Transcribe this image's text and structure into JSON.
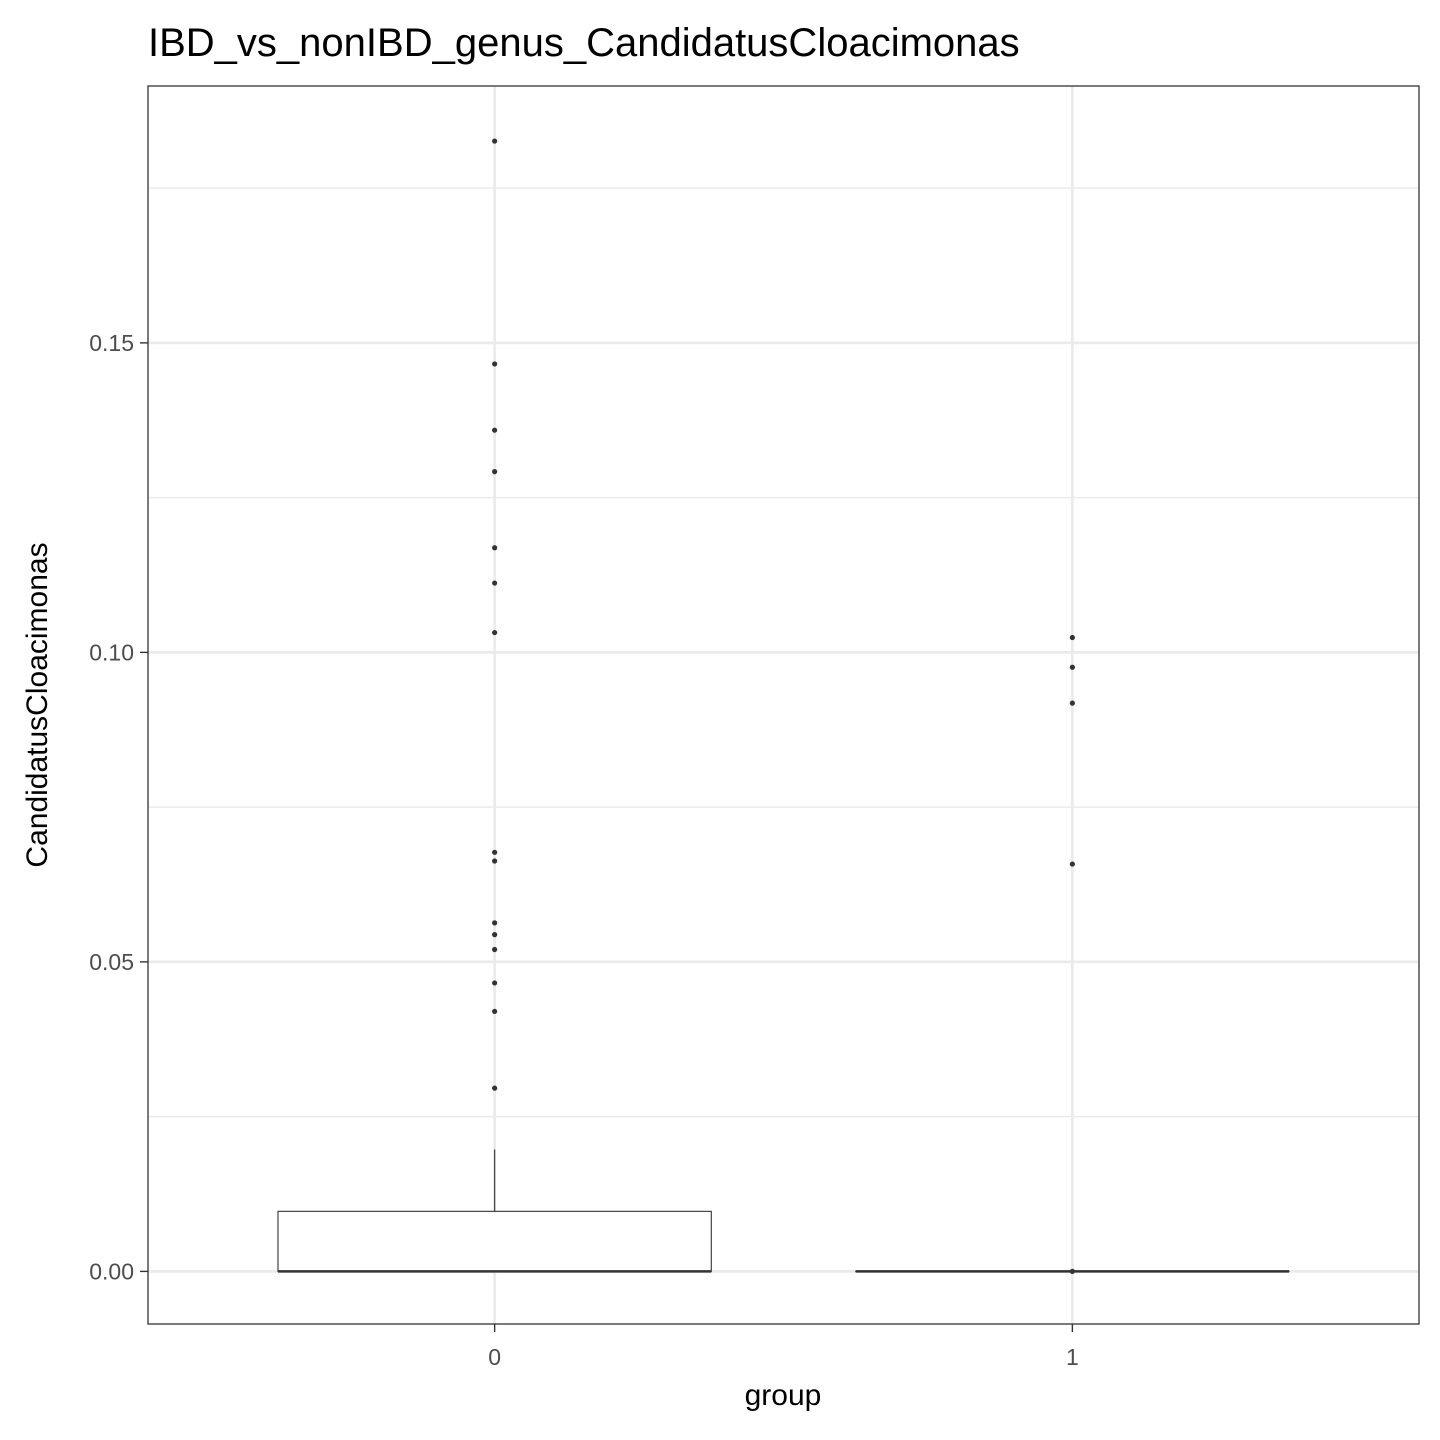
{
  "chart_data": {
    "type": "box",
    "title": "IBD_vs_nonIBD_genus_CandidatusCloacimonas",
    "xlabel": "group",
    "ylabel": "CandidatusCloacimonas",
    "categories": [
      "0",
      "1"
    ],
    "ylim": [
      -0.0085,
      0.1915
    ],
    "y_ticks": [
      0.0,
      0.05,
      0.1,
      0.15
    ],
    "y_tick_labels": [
      "0.00",
      "0.05",
      "0.10",
      "0.15"
    ],
    "y_minor_ticks": [
      0.025,
      0.075,
      0.125,
      0.175
    ],
    "grid": true,
    "boxes": [
      {
        "category": "0",
        "min": 0.0,
        "q1": 0.0,
        "median": 0.0,
        "q3": 0.0097,
        "max": 0.0197,
        "outliers": [
          0.1826,
          0.1466,
          0.1359,
          0.1292,
          0.1169,
          0.1112,
          0.1032,
          0.0677,
          0.0663,
          0.0563,
          0.0544,
          0.052,
          0.0466,
          0.042,
          0.0296
        ]
      },
      {
        "category": "1",
        "min": 0.0,
        "q1": 0.0,
        "median": 0.0,
        "q3": 0.0,
        "max": 0.0,
        "outliers": [
          0.1024,
          0.0976,
          0.0918,
          0.0658,
          0.0
        ]
      }
    ]
  }
}
